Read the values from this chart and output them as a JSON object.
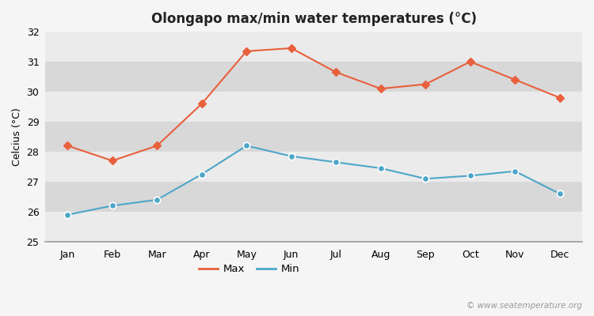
{
  "title": "Olongapo max/min water temperatures (°C)",
  "months": [
    "Jan",
    "Feb",
    "Mar",
    "Apr",
    "May",
    "Jun",
    "Jul",
    "Aug",
    "Sep",
    "Oct",
    "Nov",
    "Dec"
  ],
  "max_temps": [
    28.2,
    27.7,
    28.2,
    29.6,
    31.35,
    31.45,
    30.65,
    30.1,
    30.25,
    31.0,
    30.4,
    29.8
  ],
  "min_temps": [
    25.9,
    26.2,
    26.4,
    27.25,
    28.2,
    27.85,
    27.65,
    27.45,
    27.1,
    27.2,
    27.35,
    26.6
  ],
  "max_color": "#e8603c",
  "min_color": "#4da6c8",
  "bg_color": "#f5f5f5",
  "band_colors": [
    "#ebebeb",
    "#d8d8d8"
  ],
  "ylabel": "Celcius (°C)",
  "ylim": [
    25,
    32
  ],
  "yticks": [
    25,
    26,
    27,
    28,
    29,
    30,
    31,
    32
  ],
  "watermark": "© www.seatemperature.org",
  "legend_labels": [
    "Max",
    "Min"
  ],
  "title_fontsize": 12,
  "label_fontsize": 9,
  "tick_fontsize": 9,
  "watermark_fontsize": 7.5
}
